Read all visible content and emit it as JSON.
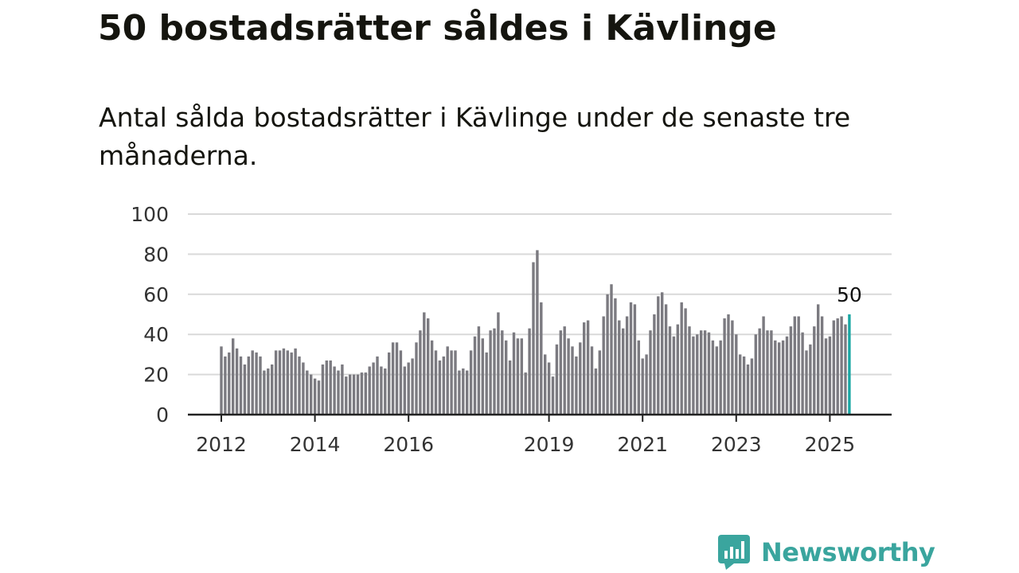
{
  "title": "50 bostadsrätter såldes i Kävlinge",
  "subtitle": "Antal sålda bostadsrätter i Kävlinge under de senaste tre månaderna.",
  "brand": {
    "name": "Newsworthy",
    "icon": "newsworthy-logo-icon",
    "color": "#3aa59e"
  },
  "chart_data": {
    "type": "bar",
    "title": "",
    "xlabel": "",
    "ylabel": "",
    "ylim": [
      0,
      100
    ],
    "yticks": [
      0,
      20,
      40,
      60,
      80,
      100
    ],
    "grid": true,
    "bar_color": "#7b7a80",
    "highlight_color": "#1aa6a3",
    "start": "2012-01",
    "xtick_labels": [
      {
        "label": "2012",
        "date": "2012-01"
      },
      {
        "label": "2014",
        "date": "2014-01"
      },
      {
        "label": "2016",
        "date": "2016-01"
      },
      {
        "label": "2019",
        "date": "2019-01"
      },
      {
        "label": "2021",
        "date": "2021-01"
      },
      {
        "label": "2023",
        "date": "2023-01"
      },
      {
        "label": "2025",
        "date": "2025-01"
      }
    ],
    "values": [
      34,
      29,
      31,
      38,
      33,
      29,
      25,
      29,
      32,
      31,
      29,
      22,
      23,
      25,
      32,
      32,
      33,
      32,
      31,
      33,
      29,
      26,
      22,
      20,
      18,
      17,
      25,
      27,
      27,
      24,
      22,
      25,
      19,
      20,
      20,
      20,
      21,
      21,
      24,
      26,
      29,
      24,
      23,
      31,
      36,
      36,
      32,
      24,
      26,
      28,
      36,
      42,
      51,
      48,
      37,
      32,
      27,
      29,
      34,
      32,
      32,
      22,
      23,
      22,
      32,
      39,
      44,
      38,
      31,
      42,
      43,
      51,
      42,
      37,
      27,
      41,
      38,
      38,
      21,
      43,
      76,
      82,
      56,
      30,
      26,
      19,
      35,
      42,
      44,
      38,
      34,
      29,
      36,
      46,
      47,
      34,
      23,
      32,
      49,
      60,
      65,
      58,
      47,
      43,
      49,
      56,
      55,
      37,
      28,
      30,
      42,
      50,
      59,
      61,
      55,
      44,
      39,
      45,
      56,
      53,
      44,
      39,
      40,
      42,
      42,
      41,
      37,
      34,
      37,
      48,
      50,
      47,
      40,
      30,
      29,
      25,
      28,
      40,
      43,
      49,
      42,
      42,
      37,
      36,
      37,
      39,
      44,
      49,
      49,
      41,
      32,
      35,
      44,
      55,
      49,
      38,
      39,
      47,
      48,
      49,
      45,
      50
    ],
    "highlight_last": true,
    "annotations": [
      {
        "text": "50",
        "target": "last-bar"
      }
    ]
  }
}
